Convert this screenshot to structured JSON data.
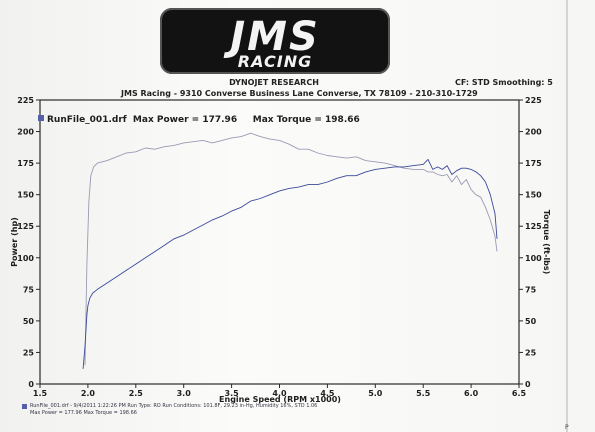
{
  "header": {
    "logo_top": "JMS",
    "logo_bottom": "RACING",
    "title": "DYNOJET RESEARCH",
    "subtitle": "JMS Racing - 9310 Converse Business Lane    Converse, TX 78109 - 210-310-1729",
    "cf": "CF: STD  Smoothing: 5"
  },
  "footer": {
    "line1": "RunFile_001.drf - 9/4/2011 1:22:26 PM  Run Type: RO  Run Conditions: 101.8F, 29.23 in-Hg, Humidity 16%, STD 1.06",
    "line2": "Max Power = 177.96  Max Torque = 198.66",
    "cut": "P"
  },
  "chart_data": {
    "type": "line",
    "title": "RunFile_001.drf  Max Power = 177.96     Max Torque = 198.66",
    "xlabel": "Engine Speed (RPM x1000)",
    "ylabel": "Power (hp)",
    "y2label": "Torque (ft-lbs)",
    "xlim": [
      1.5,
      6.5
    ],
    "ylim": [
      0,
      225
    ],
    "y2lim": [
      0,
      225
    ],
    "x_ticks": [
      "1.5",
      "2.0",
      "2.5",
      "3.0",
      "3.5",
      "4.0",
      "4.5",
      "5.0",
      "5.5",
      "6.0",
      "6.5"
    ],
    "y_ticks": [
      "0",
      "25",
      "50",
      "75",
      "100",
      "125",
      "150",
      "175",
      "200",
      "225"
    ],
    "y2_ticks": [
      "0",
      "25",
      "50",
      "75",
      "100",
      "125",
      "150",
      "175",
      "200",
      "225"
    ],
    "grid": false,
    "colors": {
      "power": "#3a4a9a",
      "torque": "#9a9ab6",
      "frame": "#2a2a2a"
    },
    "series": [
      {
        "key": "torque",
        "x": [
          1.97,
          1.99,
          2.01,
          2.03,
          2.06,
          2.1,
          2.15,
          2.2,
          2.3,
          2.4,
          2.5,
          2.6,
          2.7,
          2.8,
          2.9,
          3.0,
          3.1,
          3.2,
          3.3,
          3.4,
          3.5,
          3.6,
          3.7,
          3.8,
          3.9,
          4.0,
          4.1,
          4.2,
          4.3,
          4.4,
          4.5,
          4.6,
          4.7,
          4.8,
          4.9,
          5.0,
          5.1,
          5.2,
          5.3,
          5.4,
          5.5,
          5.55,
          5.6,
          5.65,
          5.7,
          5.75,
          5.8,
          5.85,
          5.9,
          5.95,
          6.0,
          6.05,
          6.1,
          6.15,
          6.2,
          6.25,
          6.27
        ],
        "y": [
          15,
          95,
          145,
          165,
          172,
          175,
          176,
          177,
          180,
          183,
          184,
          187,
          186,
          188,
          189,
          191,
          192,
          193,
          191,
          193,
          195,
          196,
          198.66,
          196,
          194,
          193,
          190,
          186,
          186,
          183,
          181,
          180,
          179,
          180,
          177,
          176,
          175,
          173,
          171,
          170,
          170,
          168,
          168,
          166,
          165,
          166,
          160,
          165,
          158,
          162,
          154,
          150,
          148,
          140,
          130,
          117,
          105
        ]
      },
      {
        "key": "power",
        "x": [
          1.95,
          1.97,
          1.99,
          2.0,
          2.02,
          2.05,
          2.1,
          2.2,
          2.3,
          2.4,
          2.5,
          2.6,
          2.7,
          2.8,
          2.9,
          3.0,
          3.1,
          3.2,
          3.3,
          3.4,
          3.5,
          3.6,
          3.7,
          3.8,
          3.9,
          4.0,
          4.1,
          4.2,
          4.3,
          4.4,
          4.5,
          4.6,
          4.7,
          4.8,
          4.9,
          5.0,
          5.1,
          5.2,
          5.3,
          5.4,
          5.5,
          5.55,
          5.6,
          5.65,
          5.7,
          5.75,
          5.8,
          5.85,
          5.9,
          5.95,
          6.0,
          6.05,
          6.1,
          6.15,
          6.2,
          6.25,
          6.27
        ],
        "y": [
          12,
          30,
          55,
          62,
          68,
          72,
          75,
          80,
          85,
          90,
          95,
          100,
          105,
          110,
          115,
          118,
          122,
          126,
          130,
          133,
          137,
          140,
          145,
          147,
          150,
          153,
          155,
          156,
          158,
          158,
          160,
          163,
          165,
          165,
          168,
          170,
          171,
          172,
          172,
          173,
          174,
          177.96,
          170,
          172,
          170,
          173,
          166,
          169,
          171,
          171,
          170,
          168,
          165,
          160,
          150,
          135,
          115
        ]
      }
    ]
  }
}
